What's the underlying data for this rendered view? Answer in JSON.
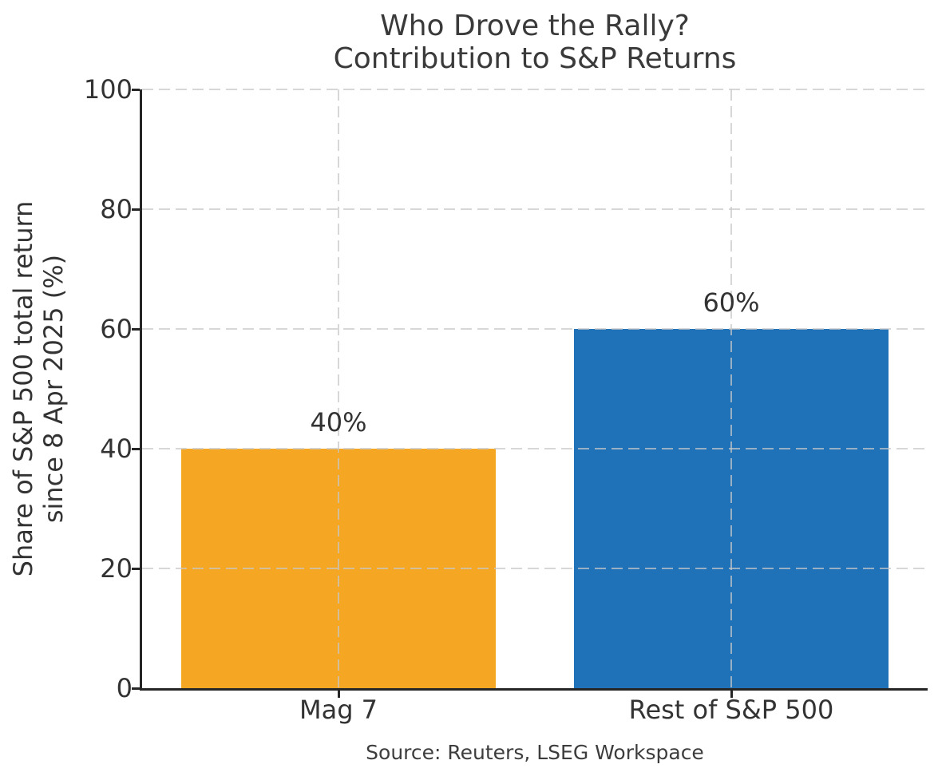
{
  "chart_data": {
    "type": "bar",
    "title": "Who Drove the Rally?\nContribution to S&P Returns",
    "title_lines": [
      "Who Drove the Rally?",
      "Contribution to S&P Returns"
    ],
    "ylabel": "Share of S&P 500 total return\nsince 8 Apr 2025 (%)",
    "ylabel_lines": [
      "Share of S&P 500 total return",
      "since 8 Apr 2025 (%)"
    ],
    "xlabel": "",
    "categories": [
      "Mag 7",
      "Rest of S&P 500"
    ],
    "values": [
      40,
      60
    ],
    "bar_labels": [
      "40%",
      "60%"
    ],
    "bar_colors": [
      "#F5A623",
      "#2072B8"
    ],
    "ylim": [
      0,
      100
    ],
    "yticks": [
      0,
      20,
      40,
      60,
      80,
      100
    ],
    "grid": "dashed, horizontal at yticks and vertical at bar centers, drawn over bars",
    "legend": "none",
    "source": "Source: Reuters, LSEG Workspace"
  },
  "style": {
    "text_color": "#333333",
    "title_color": "#3a3a3a",
    "spine_color": "#262626",
    "grid_color": "#c8c8c8",
    "background": "#ffffff"
  }
}
